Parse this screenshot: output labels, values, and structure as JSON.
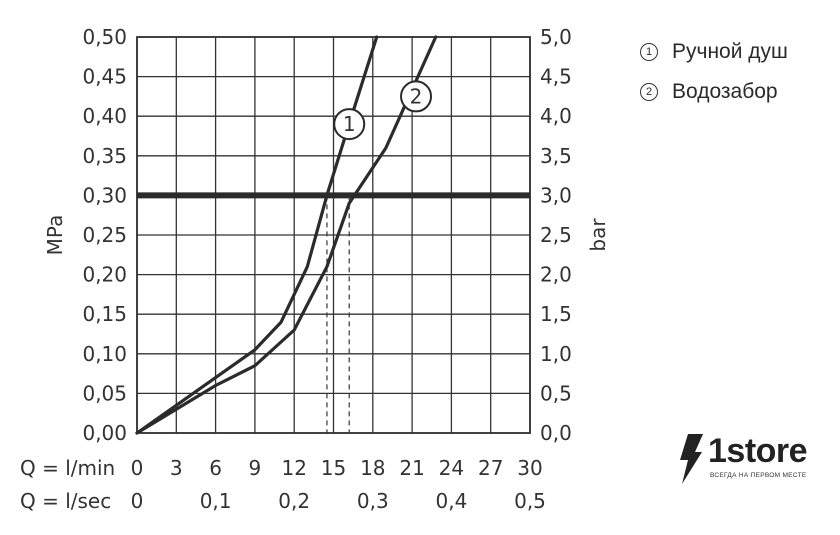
{
  "chart_data": {
    "type": "line",
    "xlabel_rows": [
      {
        "label": "Q = l/min",
        "ticks": [
          "0",
          "3",
          "6",
          "9",
          "12",
          "15",
          "18",
          "21",
          "24",
          "27",
          "30"
        ],
        "values": [
          0,
          3,
          6,
          9,
          12,
          15,
          18,
          21,
          24,
          27,
          30
        ]
      },
      {
        "label": "Q = l/sec",
        "ticks": [
          "0",
          "0,1",
          "0,2",
          "0,3",
          "0,4",
          "0,5"
        ],
        "values": [
          0,
          6,
          12,
          18,
          24,
          30
        ]
      }
    ],
    "xlim": [
      0,
      30
    ],
    "ylabel_left": "MPa",
    "ylabel_right": "bar",
    "ylim": [
      0,
      0.5
    ],
    "yticks_left": [
      "0,00",
      "0,05",
      "0,10",
      "0,15",
      "0,20",
      "0,25",
      "0,30",
      "0,35",
      "0,40",
      "0,45",
      "0,50"
    ],
    "yticks_right": [
      "0,0",
      "0,5",
      "1,0",
      "1,5",
      "2,0",
      "2,5",
      "3,0",
      "3,5",
      "4,0",
      "4,5",
      "5,0"
    ],
    "grid": true,
    "reference_line": {
      "y": 0.3
    },
    "dashed_markers": [
      14.5,
      16.2
    ],
    "series": [
      {
        "marker": "1",
        "x": [
          0,
          3,
          6,
          9,
          11,
          13,
          14.5,
          16,
          18.3
        ],
        "y": [
          0,
          0.035,
          0.07,
          0.105,
          0.14,
          0.21,
          0.3,
          0.38,
          0.5
        ]
      },
      {
        "marker": "2",
        "x": [
          0,
          3,
          6,
          9,
          12,
          14.5,
          16.2,
          19,
          22.8
        ],
        "y": [
          0,
          0.03,
          0.06,
          0.085,
          0.13,
          0.21,
          0.29,
          0.36,
          0.5
        ]
      }
    ],
    "marker_labels": [
      {
        "text": "1",
        "x": 16.2,
        "y": 0.39
      },
      {
        "text": "2",
        "x": 21.3,
        "y": 0.425
      }
    ]
  },
  "legend": [
    {
      "num": "1",
      "label": "Ручной душ"
    },
    {
      "num": "2",
      "label": "Водозабор"
    }
  ],
  "logo": {
    "text": "1store",
    "tagline": "ВСЕГДА НА ПЕРВОМ МЕСТЕ"
  }
}
